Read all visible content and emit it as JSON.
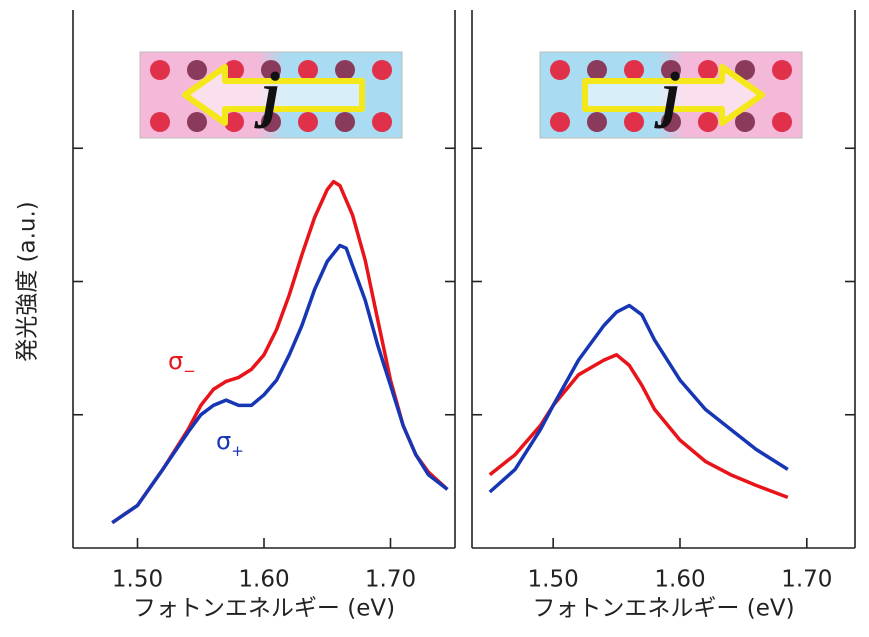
{
  "chart_data": [
    {
      "type": "line",
      "y_label": "発光強度 (a.u.)",
      "x_label": "フォトンエネルギー (eV)",
      "inset_label": "j",
      "xlim": [
        1.449,
        1.751
      ],
      "ylim": [
        0,
        4
      ],
      "xticks": [
        {
          "value": 1.5,
          "label": "1.50"
        },
        {
          "value": 1.6,
          "label": "1.60"
        },
        {
          "value": 1.7,
          "label": "1.70"
        }
      ],
      "yticks": [
        1,
        2,
        3
      ],
      "annotations": [
        {
          "text": "σ",
          "sub": "−",
          "color": "#e8141a"
        },
        {
          "text": "σ",
          "sub": "+",
          "color": "#1636b4"
        }
      ],
      "series": [
        {
          "color": "#e8141a",
          "x": [
            1.48,
            1.5,
            1.52,
            1.54,
            1.55,
            1.56,
            1.57,
            1.58,
            1.59,
            1.6,
            1.61,
            1.62,
            1.63,
            1.64,
            1.65,
            1.655,
            1.66,
            1.67,
            1.68,
            1.69,
            1.7,
            1.71,
            1.72,
            1.73,
            1.745
          ],
          "values": [
            0.19,
            0.32,
            0.59,
            0.89,
            1.07,
            1.19,
            1.25,
            1.28,
            1.34,
            1.45,
            1.64,
            1.9,
            2.2,
            2.48,
            2.69,
            2.75,
            2.72,
            2.5,
            2.16,
            1.71,
            1.26,
            0.92,
            0.7,
            0.57,
            0.44
          ]
        },
        {
          "color": "#1636b4",
          "x": [
            1.48,
            1.5,
            1.52,
            1.54,
            1.55,
            1.56,
            1.57,
            1.58,
            1.59,
            1.6,
            1.61,
            1.62,
            1.63,
            1.64,
            1.65,
            1.66,
            1.665,
            1.67,
            1.68,
            1.69,
            1.7,
            1.71,
            1.72,
            1.73,
            1.745
          ],
          "values": [
            0.19,
            0.32,
            0.59,
            0.87,
            1.0,
            1.07,
            1.11,
            1.07,
            1.07,
            1.15,
            1.26,
            1.45,
            1.67,
            1.94,
            2.15,
            2.27,
            2.25,
            2.12,
            1.86,
            1.52,
            1.22,
            0.92,
            0.7,
            0.55,
            0.44
          ]
        }
      ]
    },
    {
      "type": "line",
      "x_label": "フォトンエネルギー (eV)",
      "inset_label": "j",
      "xlim": [
        1.436,
        1.738
      ],
      "ylim": [
        0,
        4
      ],
      "xticks": [
        {
          "value": 1.5,
          "label": "1.50"
        },
        {
          "value": 1.6,
          "label": "1.60"
        },
        {
          "value": 1.7,
          "label": "1.70"
        }
      ],
      "yticks": [
        1,
        2,
        3
      ],
      "series": [
        {
          "color": "#e8141a",
          "x": [
            1.45,
            1.47,
            1.49,
            1.5,
            1.52,
            1.54,
            1.55,
            1.56,
            1.57,
            1.58,
            1.6,
            1.62,
            1.64,
            1.66,
            1.685
          ],
          "values": [
            0.55,
            0.7,
            0.92,
            1.07,
            1.3,
            1.41,
            1.45,
            1.37,
            1.22,
            1.04,
            0.81,
            0.65,
            0.55,
            0.47,
            0.38
          ]
        },
        {
          "color": "#1636b4",
          "x": [
            1.45,
            1.47,
            1.49,
            1.5,
            1.52,
            1.54,
            1.55,
            1.56,
            1.57,
            1.58,
            1.6,
            1.62,
            1.64,
            1.66,
            1.685
          ],
          "values": [
            0.42,
            0.59,
            0.89,
            1.07,
            1.41,
            1.67,
            1.77,
            1.82,
            1.75,
            1.56,
            1.26,
            1.04,
            0.89,
            0.74,
            0.59
          ]
        }
      ]
    }
  ]
}
